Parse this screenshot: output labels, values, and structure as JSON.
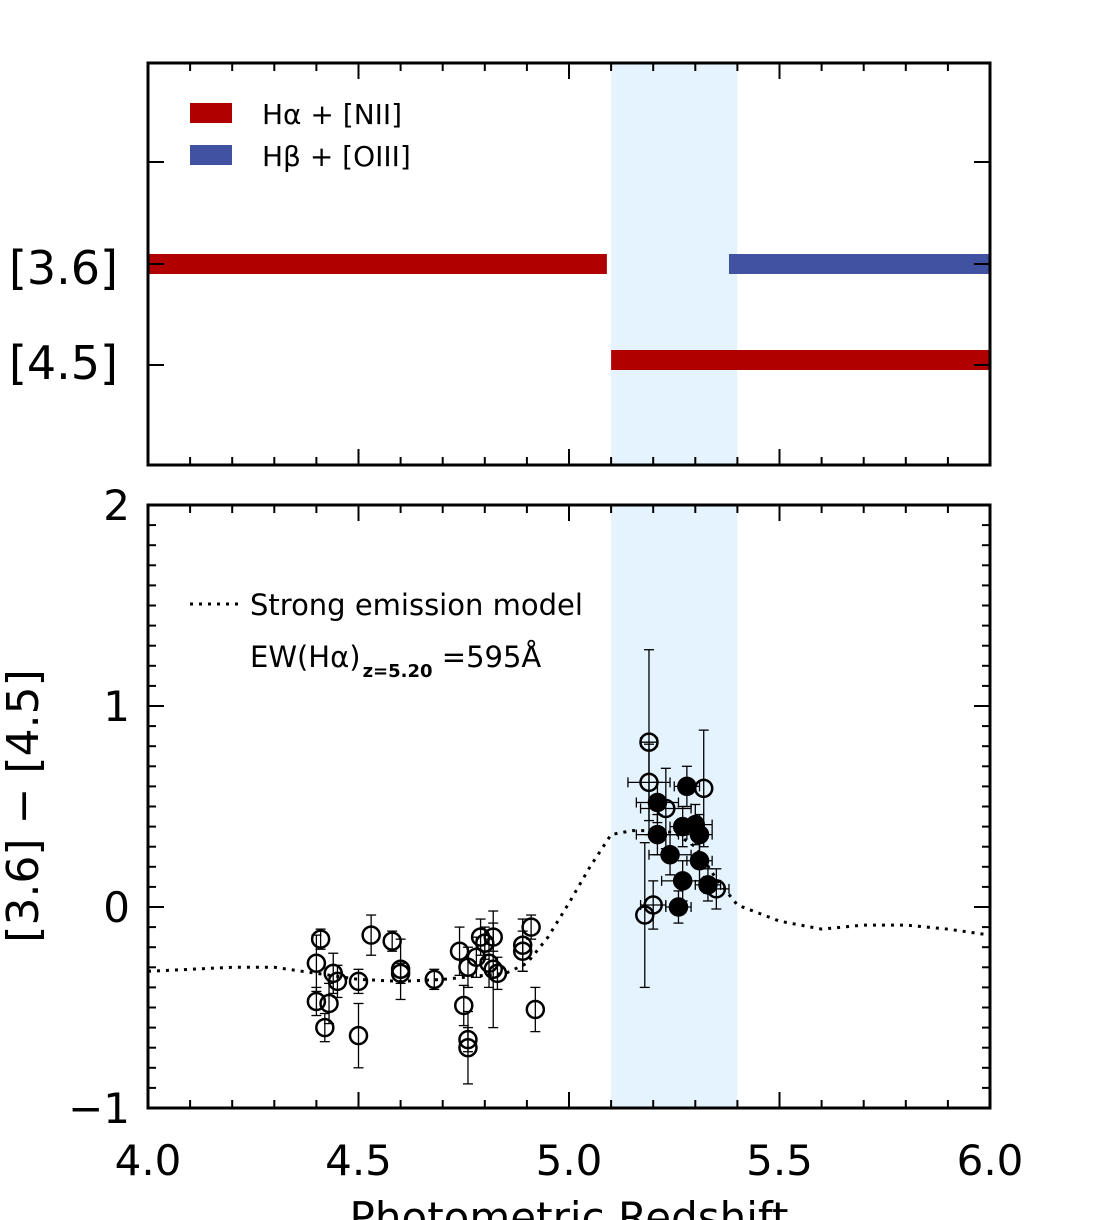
{
  "colors": {
    "halpha": "#b00000",
    "hbeta": "#4152a3",
    "shade": "#e4f3fd",
    "axis": "#000000"
  },
  "chart_data": [
    {
      "type": "bar",
      "panel": "top",
      "title": "",
      "xlim": [
        4.0,
        6.0
      ],
      "bands": [
        "[3.6]",
        "[4.5]"
      ],
      "legend": [
        {
          "label": "Hα + [NII]",
          "color": "#b00000"
        },
        {
          "label": "Hβ + [OIII]",
          "color": "#4152a3"
        }
      ],
      "segments": [
        {
          "band": "[3.6]",
          "line": "Hα + [NII]",
          "x_start": 4.0,
          "x_end": 5.09
        },
        {
          "band": "[3.6]",
          "line": "Hβ + [OIII]",
          "x_start": 5.38,
          "x_end": 6.0
        },
        {
          "band": "[4.5]",
          "line": "Hα + [NII]",
          "x_start": 5.1,
          "x_end": 6.0
        }
      ],
      "shaded_region": [
        5.1,
        5.4
      ]
    },
    {
      "type": "scatter",
      "panel": "bottom",
      "xlabel": "Photometric Redshift",
      "ylabel": "[3.6] − [4.5]",
      "xlim": [
        4.0,
        6.0
      ],
      "ylim": [
        -1.0,
        2.0
      ],
      "x_ticks": [
        "4.0",
        "4.5",
        "5.0",
        "5.5",
        "6.0"
      ],
      "y_ticks": [
        "−1",
        "0",
        "1",
        "2"
      ],
      "shaded_region": [
        5.1,
        5.4
      ],
      "model_label": "Strong emission model",
      "annotation": {
        "main": "EW(Hα)",
        "sub": "z=5.20",
        "value": " =595Å"
      },
      "model_curve": {
        "x": [
          4.0,
          4.1,
          4.2,
          4.3,
          4.4,
          4.5,
          4.6,
          4.7,
          4.8,
          4.85,
          4.9,
          4.95,
          5.0,
          5.05,
          5.1,
          5.15,
          5.2,
          5.25,
          5.3,
          5.35,
          5.4,
          5.5,
          5.6,
          5.7,
          5.8,
          5.9,
          6.0
        ],
        "y": [
          -0.32,
          -0.31,
          -0.3,
          -0.3,
          -0.33,
          -0.36,
          -0.37,
          -0.36,
          -0.34,
          -0.33,
          -0.28,
          -0.15,
          0.02,
          0.2,
          0.36,
          0.38,
          0.38,
          0.37,
          0.3,
          0.14,
          0.01,
          -0.07,
          -0.11,
          -0.09,
          -0.09,
          -0.11,
          -0.14
        ]
      },
      "series": [
        {
          "name": "open",
          "points": [
            {
              "x": 4.4,
              "y": -0.28,
              "xerr": 0.0,
              "yerr": 0.14
            },
            {
              "x": 4.41,
              "y": -0.16,
              "xerr": 0.0,
              "yerr": 0.05
            },
            {
              "x": 4.4,
              "y": -0.47,
              "xerr": 0.0,
              "yerr": 0.07
            },
            {
              "x": 4.42,
              "y": -0.6,
              "xerr": 0.0,
              "yerr": 0.07
            },
            {
              "x": 4.43,
              "y": -0.48,
              "xerr": 0.0,
              "yerr": 0.1
            },
            {
              "x": 4.44,
              "y": -0.33,
              "xerr": 0.0,
              "yerr": 0.1
            },
            {
              "x": 4.45,
              "y": -0.37,
              "xerr": 0.0,
              "yerr": 0.08
            },
            {
              "x": 4.5,
              "y": -0.64,
              "xerr": 0.0,
              "yerr": 0.16
            },
            {
              "x": 4.5,
              "y": -0.37,
              "xerr": 0.0,
              "yerr": 0.06
            },
            {
              "x": 4.53,
              "y": -0.14,
              "xerr": 0.0,
              "yerr": 0.1
            },
            {
              "x": 4.58,
              "y": -0.17,
              "xerr": 0.0,
              "yerr": 0.05
            },
            {
              "x": 4.6,
              "y": -0.31,
              "xerr": 0.0,
              "yerr": 0.15
            },
            {
              "x": 4.6,
              "y": -0.33,
              "xerr": 0.0,
              "yerr": 0.05
            },
            {
              "x": 4.68,
              "y": -0.36,
              "xerr": 0.0,
              "yerr": 0.05
            },
            {
              "x": 4.74,
              "y": -0.22,
              "xerr": 0.0,
              "yerr": 0.12
            },
            {
              "x": 4.75,
              "y": -0.49,
              "xerr": 0.0,
              "yerr": 0.1
            },
            {
              "x": 4.76,
              "y": -0.3,
              "xerr": 0.0,
              "yerr": 0.1
            },
            {
              "x": 4.76,
              "y": -0.66,
              "xerr": 0.0,
              "yerr": 0.06
            },
            {
              "x": 4.76,
              "y": -0.7,
              "xerr": 0.0,
              "yerr": 0.18
            },
            {
              "x": 4.78,
              "y": -0.25,
              "xerr": 0.0,
              "yerr": 0.1
            },
            {
              "x": 4.79,
              "y": -0.15,
              "xerr": 0.0,
              "yerr": 0.09
            },
            {
              "x": 4.8,
              "y": -0.18,
              "xerr": 0.0,
              "yerr": 0.08
            },
            {
              "x": 4.81,
              "y": -0.28,
              "xerr": 0.0,
              "yerr": 0.12
            },
            {
              "x": 4.82,
              "y": -0.15,
              "xerr": 0.0,
              "yerr": 0.07
            },
            {
              "x": 4.82,
              "y": -0.31,
              "xerr": 0.0,
              "yerr": 0.29
            },
            {
              "x": 4.83,
              "y": -0.33,
              "xerr": 0.0,
              "yerr": 0.08
            },
            {
              "x": 4.89,
              "y": -0.19,
              "xerr": 0.0,
              "yerr": 0.13
            },
            {
              "x": 4.89,
              "y": -0.22,
              "xerr": 0.0,
              "yerr": 0.1
            },
            {
              "x": 4.91,
              "y": -0.1,
              "xerr": 0.0,
              "yerr": 0.06
            },
            {
              "x": 4.92,
              "y": -0.51,
              "xerr": 0.0,
              "yerr": 0.11
            },
            {
              "x": 5.18,
              "y": -0.04,
              "xerr": 0.0,
              "yerr": 0.36
            },
            {
              "x": 5.19,
              "y": 0.82,
              "xerr": 0.02,
              "yerr": 0.46
            },
            {
              "x": 5.19,
              "y": 0.62,
              "xerr": 0.05,
              "yerr": 0.19
            },
            {
              "x": 5.2,
              "y": 0.01,
              "xerr": 0.03,
              "yerr": 0.12
            },
            {
              "x": 5.23,
              "y": 0.49,
              "xerr": 0.06,
              "yerr": 0.2
            },
            {
              "x": 5.32,
              "y": 0.59,
              "xerr": 0.0,
              "yerr": 0.29
            },
            {
              "x": 5.35,
              "y": 0.09,
              "xerr": 0.03,
              "yerr": 0.1
            }
          ]
        },
        {
          "name": "filled",
          "points": [
            {
              "x": 5.21,
              "y": 0.52,
              "xerr": 0.05,
              "yerr": 0.1
            },
            {
              "x": 5.21,
              "y": 0.36,
              "xerr": 0.05,
              "yerr": 0.1
            },
            {
              "x": 5.24,
              "y": 0.26,
              "xerr": 0.05,
              "yerr": 0.1
            },
            {
              "x": 5.26,
              "y": 0.0,
              "xerr": 0.03,
              "yerr": 0.08
            },
            {
              "x": 5.27,
              "y": 0.13,
              "xerr": 0.05,
              "yerr": 0.1
            },
            {
              "x": 5.27,
              "y": 0.4,
              "xerr": 0.03,
              "yerr": 0.1
            },
            {
              "x": 5.28,
              "y": 0.6,
              "xerr": 0.03,
              "yerr": 0.1
            },
            {
              "x": 5.3,
              "y": 0.41,
              "xerr": 0.04,
              "yerr": 0.1
            },
            {
              "x": 5.31,
              "y": 0.36,
              "xerr": 0.03,
              "yerr": 0.1
            },
            {
              "x": 5.31,
              "y": 0.23,
              "xerr": 0.03,
              "yerr": 0.1
            },
            {
              "x": 5.33,
              "y": 0.11,
              "xerr": 0.03,
              "yerr": 0.08
            }
          ]
        }
      ]
    }
  ]
}
